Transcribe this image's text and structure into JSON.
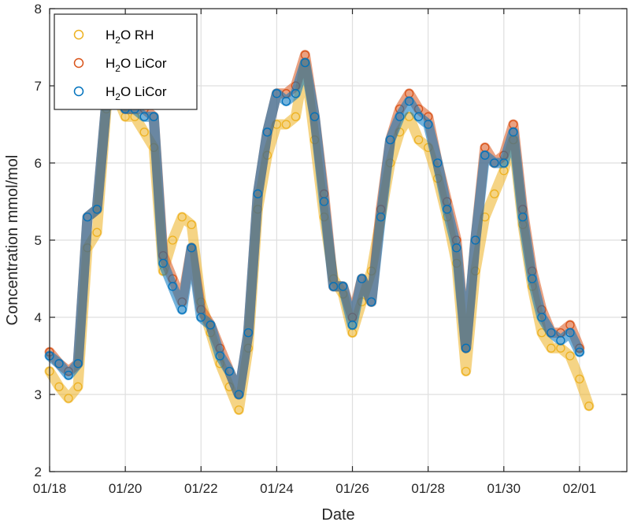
{
  "chart_data": {
    "type": "scatter",
    "title": "",
    "xlabel": "Date",
    "ylabel": "Concentration mmol/mol",
    "xlim": [
      "01/18",
      "02/02"
    ],
    "ylim": [
      2,
      8
    ],
    "x_ticks": [
      "01/18",
      "01/20",
      "01/22",
      "01/24",
      "01/26",
      "01/28",
      "01/30",
      "02/01"
    ],
    "y_ticks": [
      2,
      3,
      4,
      5,
      6,
      7,
      8
    ],
    "grid": true,
    "legend_position": "top-left",
    "marker": "open-circle",
    "legend": [
      {
        "base": "H",
        "sub": "2",
        "rest": "O RH",
        "color": "#EDB120"
      },
      {
        "base": "H",
        "sub": "2",
        "rest": "O LiCor",
        "color": "#D95319"
      },
      {
        "base": "H",
        "sub": "2",
        "rest": "O LiCor",
        "color": "#0072BD"
      }
    ],
    "series": [
      {
        "name": "H2O RH",
        "color": "#EDB120",
        "x": [
          "01/18 00:00",
          "01/18 06:00",
          "01/18 12:00",
          "01/18 18:00",
          "01/19 00:00",
          "01/19 06:00",
          "01/19 12:00",
          "01/19 18:00",
          "01/20 00:00",
          "01/20 06:00",
          "01/20 12:00",
          "01/20 18:00",
          "01/21 00:00",
          "01/21 06:00",
          "01/21 12:00",
          "01/21 18:00",
          "01/22 00:00",
          "01/22 06:00",
          "01/22 12:00",
          "01/22 18:00",
          "01/23 00:00",
          "01/23 06:00",
          "01/23 12:00",
          "01/23 18:00",
          "01/24 00:00",
          "01/24 06:00",
          "01/24 12:00",
          "01/24 18:00",
          "01/25 00:00",
          "01/25 06:00",
          "01/25 12:00",
          "01/25 18:00",
          "01/26 00:00",
          "01/26 06:00",
          "01/26 12:00",
          "01/26 18:00",
          "01/27 00:00",
          "01/27 06:00",
          "01/27 12:00",
          "01/27 18:00",
          "01/28 00:00",
          "01/28 06:00",
          "01/28 12:00",
          "01/28 18:00",
          "01/29 00:00",
          "01/29 06:00",
          "01/29 12:00",
          "01/29 18:00",
          "01/30 00:00",
          "01/30 06:00",
          "01/30 12:00",
          "01/30 18:00",
          "01/31 00:00",
          "01/31 06:00",
          "01/31 12:00",
          "01/31 18:00",
          "02/01 00:00",
          "02/01 06:00"
        ],
        "y": [
          3.3,
          3.1,
          2.95,
          3.1,
          4.9,
          5.1,
          6.7,
          6.9,
          6.6,
          6.6,
          6.4,
          6.2,
          4.6,
          5.0,
          5.3,
          5.2,
          4.2,
          3.8,
          3.4,
          3.1,
          2.8,
          3.6,
          5.4,
          6.1,
          6.5,
          6.5,
          6.6,
          7.3,
          6.3,
          5.3,
          4.5,
          4.3,
          3.8,
          4.2,
          4.6,
          5.3,
          6.0,
          6.4,
          6.6,
          6.3,
          6.2,
          5.8,
          5.3,
          4.7,
          3.3,
          4.6,
          5.3,
          5.6,
          5.9,
          6.3,
          5.2,
          4.4,
          3.8,
          3.6,
          3.6,
          3.5,
          3.2,
          2.85
        ]
      },
      {
        "name": "H2O LiCor",
        "color": "#D95319",
        "x": [
          "01/18 00:00",
          "01/18 06:00",
          "01/18 12:00",
          "01/18 18:00",
          "01/19 00:00",
          "01/19 06:00",
          "01/19 12:00",
          "01/19 18:00",
          "01/20 00:00",
          "01/20 06:00",
          "01/20 12:00",
          "01/20 18:00",
          "01/21 00:00",
          "01/21 06:00",
          "01/21 12:00",
          "01/21 18:00",
          "01/22 00:00",
          "01/22 06:00",
          "01/22 12:00",
          "01/22 18:00",
          "01/23 00:00",
          "01/23 06:00",
          "01/23 12:00",
          "01/23 18:00",
          "01/24 00:00",
          "01/24 06:00",
          "01/24 12:00",
          "01/24 18:00",
          "01/25 00:00",
          "01/25 06:00",
          "01/25 12:00",
          "01/25 18:00",
          "01/26 00:00",
          "01/26 06:00",
          "01/26 12:00",
          "01/26 18:00",
          "01/27 00:00",
          "01/27 06:00",
          "01/27 12:00",
          "01/27 18:00",
          "01/28 00:00",
          "01/28 06:00",
          "01/28 12:00",
          "01/28 18:00",
          "01/29 00:00",
          "01/29 06:00",
          "01/29 12:00",
          "01/29 18:00",
          "01/30 00:00",
          "01/30 06:00",
          "01/30 12:00",
          "01/30 18:00",
          "01/31 00:00",
          "01/31 06:00",
          "01/31 12:00",
          "01/31 18:00",
          "02/01 00:00"
        ],
        "y": [
          3.55,
          3.4,
          3.3,
          3.4,
          5.3,
          5.4,
          6.8,
          7.0,
          6.7,
          6.7,
          6.7,
          6.6,
          4.8,
          4.5,
          4.2,
          4.9,
          4.1,
          3.9,
          3.6,
          3.3,
          3.0,
          3.8,
          5.6,
          6.4,
          6.9,
          6.9,
          7.0,
          7.4,
          6.6,
          5.6,
          4.4,
          4.4,
          4.0,
          4.5,
          4.2,
          5.4,
          6.3,
          6.7,
          6.9,
          6.7,
          6.6,
          6.0,
          5.5,
          5.0,
          3.6,
          5.0,
          6.2,
          6.0,
          6.1,
          6.5,
          5.4,
          4.6,
          4.1,
          3.8,
          3.8,
          3.9,
          3.6
        ]
      },
      {
        "name": "H2O LiCor",
        "color": "#0072BD",
        "x": [
          "01/18 00:00",
          "01/18 06:00",
          "01/18 12:00",
          "01/18 18:00",
          "01/19 00:00",
          "01/19 06:00",
          "01/19 12:00",
          "01/19 18:00",
          "01/20 00:00",
          "01/20 06:00",
          "01/20 12:00",
          "01/20 18:00",
          "01/21 00:00",
          "01/21 06:00",
          "01/21 12:00",
          "01/21 18:00",
          "01/22 00:00",
          "01/22 06:00",
          "01/22 12:00",
          "01/22 18:00",
          "01/23 00:00",
          "01/23 06:00",
          "01/23 12:00",
          "01/23 18:00",
          "01/24 00:00",
          "01/24 06:00",
          "01/24 12:00",
          "01/24 18:00",
          "01/25 00:00",
          "01/25 06:00",
          "01/25 12:00",
          "01/25 18:00",
          "01/26 00:00",
          "01/26 06:00",
          "01/26 12:00",
          "01/26 18:00",
          "01/27 00:00",
          "01/27 06:00",
          "01/27 12:00",
          "01/27 18:00",
          "01/28 00:00",
          "01/28 06:00",
          "01/28 12:00",
          "01/28 18:00",
          "01/29 00:00",
          "01/29 06:00",
          "01/29 12:00",
          "01/29 18:00",
          "01/30 00:00",
          "01/30 06:00",
          "01/30 12:00",
          "01/30 18:00",
          "01/31 00:00",
          "01/31 06:00",
          "01/31 12:00",
          "01/31 18:00",
          "02/01 00:00"
        ],
        "y": [
          3.5,
          3.4,
          3.25,
          3.4,
          5.3,
          5.4,
          6.8,
          6.9,
          6.7,
          6.7,
          6.6,
          6.6,
          4.7,
          4.4,
          4.1,
          4.9,
          4.0,
          3.9,
          3.5,
          3.3,
          3.0,
          3.8,
          5.6,
          6.4,
          6.9,
          6.8,
          6.9,
          7.3,
          6.6,
          5.5,
          4.4,
          4.4,
          3.9,
          4.5,
          4.2,
          5.3,
          6.3,
          6.6,
          6.8,
          6.6,
          6.5,
          6.0,
          5.4,
          4.9,
          3.6,
          5.0,
          6.1,
          6.0,
          6.0,
          6.4,
          5.3,
          4.5,
          4.0,
          3.8,
          3.7,
          3.8,
          3.55
        ]
      }
    ]
  }
}
